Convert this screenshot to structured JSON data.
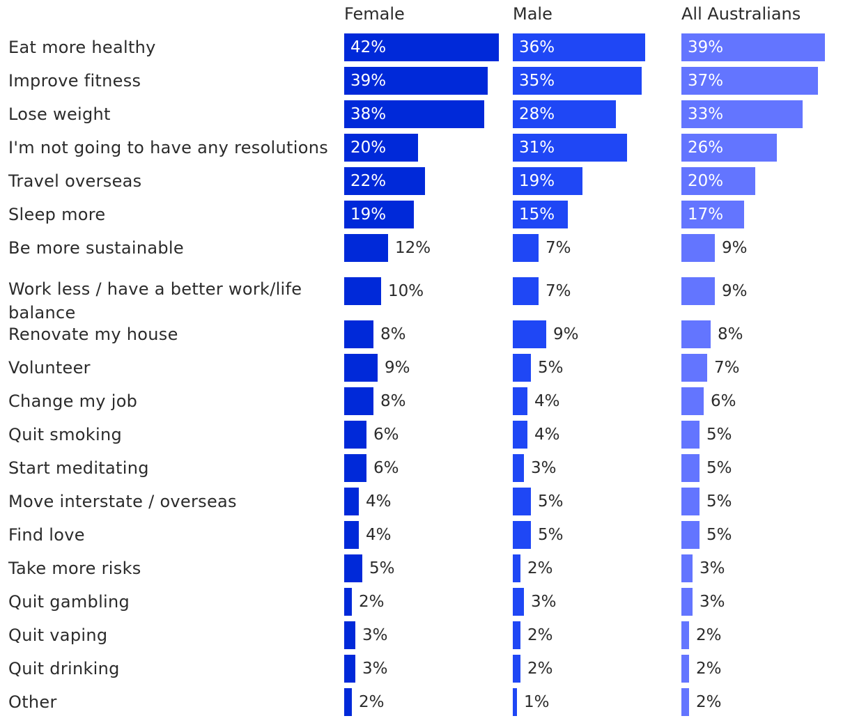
{
  "chart_data": {
    "type": "bar",
    "orientation": "horizontal",
    "title": "",
    "categories": [
      "Eat more healthy",
      "Improve fitness",
      "Lose weight",
      "I'm not going to have any resolutions",
      "Travel overseas",
      "Sleep more",
      "Be more sustainable",
      "Work less / have a better work/life balance",
      "Renovate my house",
      "Volunteer",
      "Change my job",
      "Quit smoking",
      "Start meditating",
      "Move interstate / overseas",
      "Find love",
      "Take more risks",
      "Quit gambling",
      "Quit vaping",
      "Quit drinking",
      "Other"
    ],
    "series": [
      {
        "name": "Female",
        "color": "#0029D9",
        "values": [
          42,
          39,
          38,
          20,
          22,
          19,
          12,
          10,
          8,
          9,
          8,
          6,
          6,
          4,
          4,
          5,
          2,
          3,
          3,
          2
        ]
      },
      {
        "name": "Male",
        "color": "#1F47F5",
        "values": [
          36,
          35,
          28,
          31,
          19,
          15,
          7,
          7,
          9,
          5,
          4,
          4,
          3,
          5,
          5,
          2,
          3,
          2,
          2,
          1
        ]
      },
      {
        "name": "All Australians",
        "color": "#6375FF",
        "values": [
          39,
          37,
          33,
          26,
          20,
          17,
          9,
          9,
          8,
          7,
          6,
          5,
          5,
          5,
          5,
          3,
          3,
          2,
          2,
          2
        ]
      }
    ],
    "value_suffix": "%",
    "xlim": [
      0,
      42
    ]
  }
}
